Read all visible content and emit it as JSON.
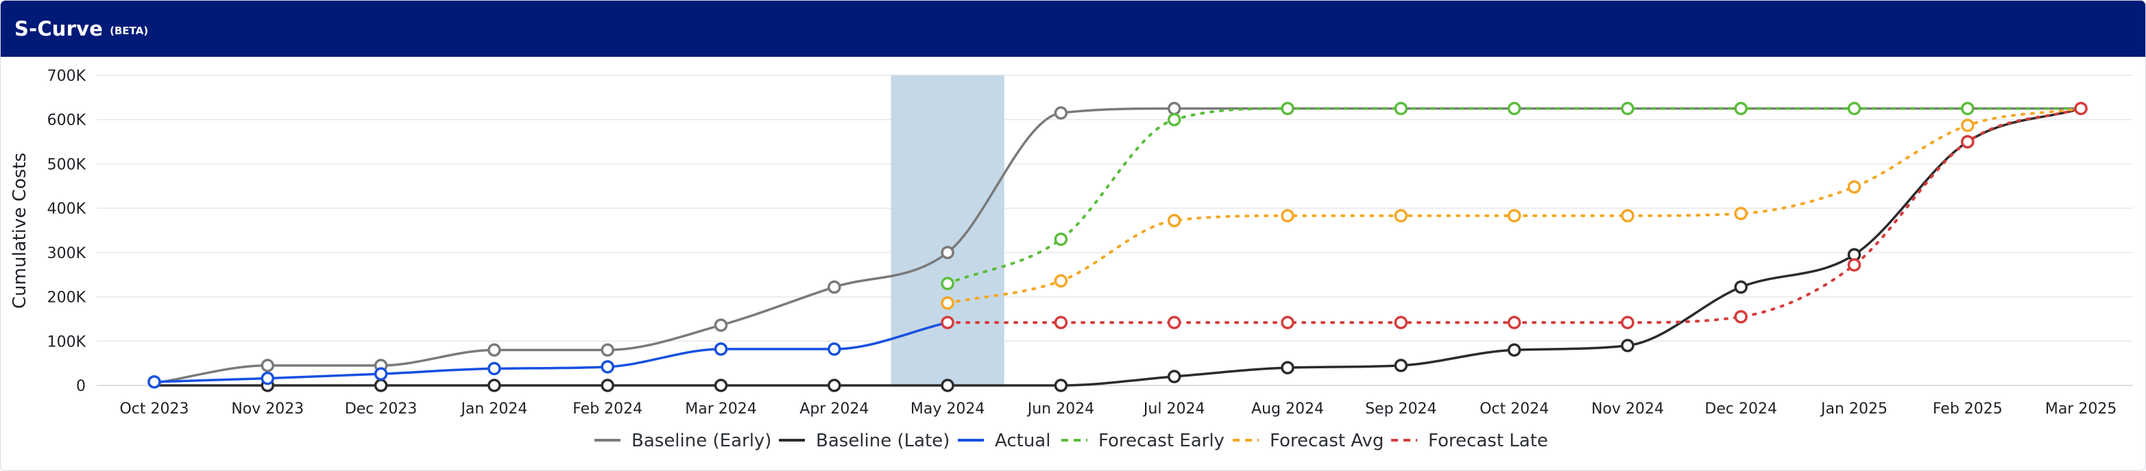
{
  "header": {
    "title": "S-Curve",
    "badge": "(BETA)"
  },
  "chart_data": {
    "type": "line",
    "title": "",
    "ylabel": "Cumulative Costs",
    "xlabel": "",
    "ylim": [
      0,
      700000
    ],
    "yticks": [
      0,
      100000,
      200000,
      300000,
      400000,
      500000,
      600000,
      700000
    ],
    "ytick_labels": [
      "0",
      "100K",
      "200K",
      "300K",
      "400K",
      "500K",
      "600K",
      "700K"
    ],
    "categories": [
      "Oct 2023",
      "Nov 2023",
      "Dec 2023",
      "Jan 2024",
      "Feb 2024",
      "Mar 2024",
      "Apr 2024",
      "May 2024",
      "Jun 2024",
      "Jul 2024",
      "Aug 2024",
      "Sep 2024",
      "Oct 2024",
      "Nov 2024",
      "Dec 2024",
      "Jan 2025",
      "Feb 2025",
      "Mar 2025"
    ],
    "highlight_category": "May 2024",
    "grid": true,
    "legend_position": "bottom",
    "series": [
      {
        "name": "Baseline (Early)",
        "color": "#7a7a7a",
        "style": "solid",
        "values": [
          5000,
          45000,
          45000,
          80000,
          80000,
          136000,
          222000,
          300000,
          615000,
          625000,
          625000,
          625000,
          625000,
          625000,
          625000,
          625000,
          625000,
          625000
        ],
        "markers": [
          1,
          2,
          3,
          4,
          5,
          6,
          7,
          8,
          9
        ]
      },
      {
        "name": "Baseline (Late)",
        "color": "#2b2b2b",
        "style": "solid",
        "values": [
          0,
          0,
          0,
          0,
          0,
          0,
          0,
          0,
          0,
          20000,
          40000,
          45000,
          80000,
          90000,
          222000,
          295000,
          550000,
          625000
        ],
        "markers": [
          1,
          2,
          3,
          4,
          5,
          6,
          7,
          8,
          9,
          10,
          11,
          12,
          13,
          14,
          15,
          16
        ]
      },
      {
        "name": "Actual",
        "color": "#1750e0",
        "style": "solid",
        "values": [
          8000,
          16000,
          26000,
          38000,
          42000,
          82000,
          82000,
          142000,
          null,
          null,
          null,
          null,
          null,
          null,
          null,
          null,
          null,
          null
        ],
        "markers": [
          0,
          1,
          2,
          3,
          4,
          5,
          6
        ]
      },
      {
        "name": "Forecast Early",
        "color": "#5bbd3c",
        "style": "dotted",
        "values": [
          null,
          null,
          null,
          null,
          null,
          null,
          null,
          230000,
          330000,
          600000,
          625000,
          625000,
          625000,
          625000,
          625000,
          625000,
          625000,
          625000
        ],
        "markers": [
          7,
          8,
          9,
          10,
          11,
          12,
          13,
          14,
          15,
          16
        ]
      },
      {
        "name": "Forecast Avg",
        "color": "#f5a623",
        "style": "dotted",
        "values": [
          null,
          null,
          null,
          null,
          null,
          null,
          null,
          186000,
          236000,
          372000,
          383000,
          383000,
          383000,
          383000,
          388000,
          448000,
          587000,
          625000
        ],
        "markers": [
          7,
          8,
          9,
          10,
          11,
          12,
          13,
          14,
          15,
          16
        ]
      },
      {
        "name": "Forecast Late",
        "color": "#d63b3b",
        "style": "dotted",
        "values": [
          null,
          null,
          null,
          null,
          null,
          null,
          null,
          142000,
          142000,
          142000,
          142000,
          142000,
          142000,
          142000,
          155000,
          272000,
          550000,
          625000
        ],
        "markers": [
          7,
          8,
          9,
          10,
          11,
          12,
          13,
          14,
          15,
          16,
          17
        ]
      }
    ],
    "legend_order": [
      "Baseline (Early)",
      "Baseline (Late)",
      "Actual",
      "Forecast Early",
      "Forecast Avg",
      "Forecast Late"
    ],
    "legend_styles": [
      "solid",
      "solid",
      "solid",
      "dashed",
      "dashed",
      "dashed"
    ]
  }
}
